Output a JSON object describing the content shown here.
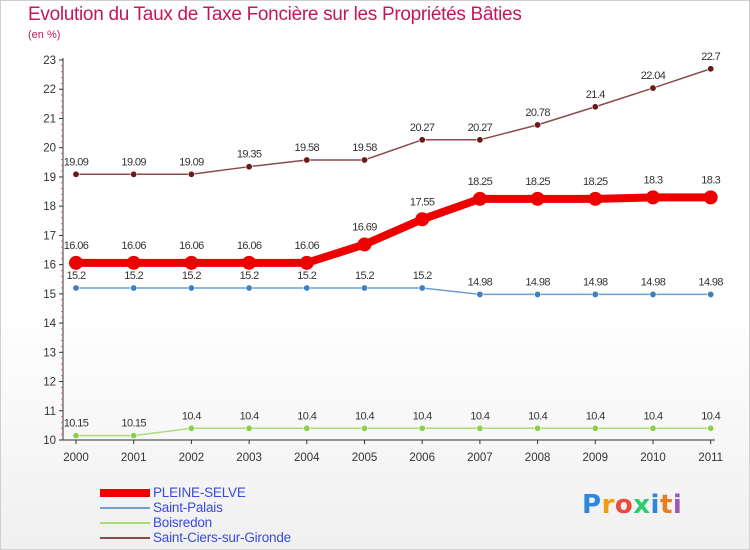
{
  "title": "Evolution du Taux de Taxe Foncière sur les Propriétés Bâties",
  "unit": "(en %)",
  "logo": {
    "text": "Proxiti",
    "colors": [
      "#2e86de",
      "#f39c12",
      "#e74c3c",
      "#2ecc71",
      "#2e86de",
      "#e67e22",
      "#9b59b6"
    ]
  },
  "chart_data": {
    "type": "line",
    "title": "Evolution du Taux de Taxe Foncière sur les Propriétés Bâties",
    "ylabel": "(en %)",
    "xlabel": "",
    "categories": [
      "2000",
      "2001",
      "2002",
      "2003",
      "2004",
      "2005",
      "2006",
      "2007",
      "2008",
      "2009",
      "2010",
      "2011"
    ],
    "ylim": [
      10,
      23
    ],
    "yticks": [
      "10",
      "11",
      "12",
      "13",
      "14",
      "15",
      "16",
      "17",
      "18",
      "19",
      "20",
      "21",
      "22",
      "23"
    ],
    "grid": false,
    "legend_position": "bottom-left",
    "series": [
      {
        "name": "PLEINE-SELVE",
        "color": "#ee0000",
        "marker_color": "#ee0000",
        "emphasis": "thick",
        "values": [
          16.06,
          16.06,
          16.06,
          16.06,
          16.06,
          16.69,
          17.55,
          18.25,
          18.25,
          18.25,
          18.3,
          18.3
        ],
        "labels": [
          "16.06",
          "16.06",
          "16.06",
          "16.06",
          "16.06",
          "16.69",
          "17.55",
          "18.25",
          "18.25",
          "18.25",
          "18.3",
          "18.3"
        ]
      },
      {
        "name": "Saint-Palais",
        "color": "#6a9fcf",
        "marker_color": "#3d7fc1",
        "emphasis": "thin",
        "values": [
          15.2,
          15.2,
          15.2,
          15.2,
          15.2,
          15.2,
          15.2,
          14.98,
          14.98,
          14.98,
          14.98,
          14.98
        ],
        "labels": [
          "15.2",
          "15.2",
          "15.2",
          "15.2",
          "15.2",
          "15.2",
          "15.2",
          "14.98",
          "14.98",
          "14.98",
          "14.98",
          "14.98"
        ]
      },
      {
        "name": "Boisredon",
        "color": "#a8dc7a",
        "marker_color": "#8ccf4d",
        "emphasis": "thin",
        "values": [
          10.15,
          10.15,
          10.4,
          10.4,
          10.4,
          10.4,
          10.4,
          10.4,
          10.4,
          10.4,
          10.4,
          10.4
        ],
        "labels": [
          "10.15",
          "10.15",
          "10.4",
          "10.4",
          "10.4",
          "10.4",
          "10.4",
          "10.4",
          "10.4",
          "10.4",
          "10.4",
          "10.4"
        ]
      },
      {
        "name": "Saint-Ciers-sur-Gironde",
        "color": "#8b4a4a",
        "marker_color": "#6b1a1a",
        "emphasis": "thin",
        "values": [
          19.09,
          19.09,
          19.09,
          19.35,
          19.58,
          19.58,
          20.27,
          20.27,
          20.78,
          21.4,
          22.04,
          22.7
        ],
        "labels": [
          "19.09",
          "19.09",
          "19.09",
          "19.35",
          "19.58",
          "19.58",
          "20.27",
          "20.27",
          "20.78",
          "21.4",
          "22.04",
          "22.7"
        ]
      }
    ]
  }
}
